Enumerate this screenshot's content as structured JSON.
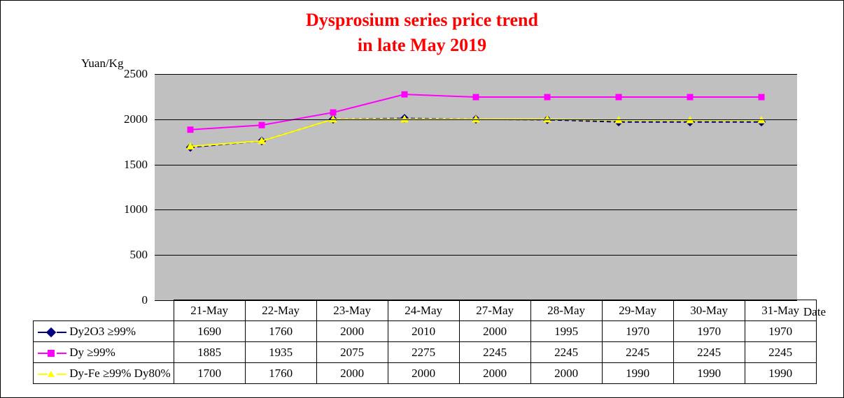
{
  "chart": {
    "type": "line",
    "title_line1": "Dysprosium series price trend",
    "title_line2": "in late May 2019",
    "title_color": "#ff0000",
    "title_fontsize": 26,
    "y_axis_label": "Yuan/Kg",
    "x_axis_label": "Date",
    "label_fontsize": 17,
    "background_color": "#ffffff",
    "plot_bg_color": "#c0c0c0",
    "grid_color": "#000000",
    "border_color": "#000000",
    "ylim": [
      0,
      2500
    ],
    "ytick_step": 500,
    "yticks": [
      0,
      500,
      1000,
      1500,
      2000,
      2500
    ],
    "categories": [
      "21-May",
      "22-May",
      "23-May",
      "24-May",
      "27-May",
      "28-May",
      "29-May",
      "30-May",
      "31-May"
    ],
    "series": [
      {
        "name": "Dy2O3 ≥99%",
        "color": "#000080",
        "marker": "diamond",
        "marker_fill": "#000080",
        "line_width": 2,
        "line_style": "dashed",
        "values": [
          1690,
          1760,
          2000,
          2010,
          2000,
          1995,
          1970,
          1970,
          1970
        ]
      },
      {
        "name": "Dy ≥99%",
        "color": "#ff00ff",
        "marker": "square",
        "marker_fill": "#ff00ff",
        "line_width": 2,
        "line_style": "solid",
        "values": [
          1885,
          1935,
          2075,
          2275,
          2245,
          2245,
          2245,
          2245,
          2245
        ]
      },
      {
        "name": "Dy-Fe ≥99% Dy80%",
        "color": "#ffff00",
        "marker": "triangle",
        "marker_fill": "#ffff00",
        "line_width": 2,
        "line_style": "solid",
        "values": [
          1700,
          1760,
          2000,
          2000,
          2000,
          2000,
          1990,
          1990,
          1990
        ]
      }
    ]
  }
}
